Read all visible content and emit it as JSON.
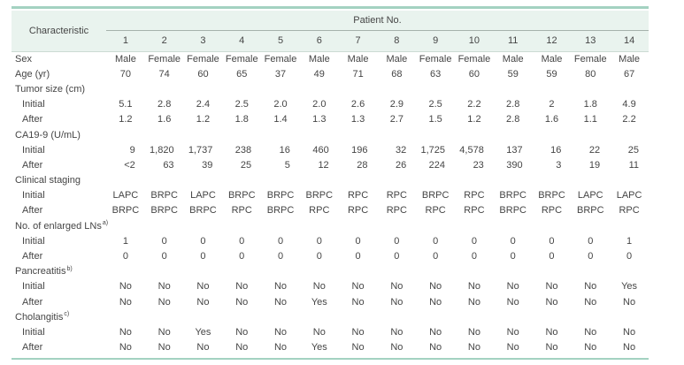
{
  "table": {
    "characteristic_label": "Characteristic",
    "patient_group_label": "Patient No.",
    "patient_numbers": [
      "1",
      "2",
      "3",
      "4",
      "5",
      "6",
      "7",
      "8",
      "9",
      "10",
      "11",
      "12",
      "13",
      "14"
    ],
    "rows": [
      {
        "label": "Sex",
        "type": "data",
        "indent": 0,
        "align": "center",
        "values": [
          "Male",
          "Female",
          "Female",
          "Female",
          "Female",
          "Male",
          "Male",
          "Male",
          "Female",
          "Female",
          "Male",
          "Male",
          "Female",
          "Male"
        ]
      },
      {
        "label": "Age (yr)",
        "type": "data",
        "indent": 0,
        "align": "center",
        "values": [
          "70",
          "74",
          "60",
          "65",
          "37",
          "49",
          "71",
          "68",
          "63",
          "60",
          "59",
          "59",
          "80",
          "67"
        ]
      },
      {
        "label": "Tumor size (cm)",
        "type": "section",
        "indent": 0,
        "values": []
      },
      {
        "label": "Initial",
        "type": "data",
        "indent": 1,
        "align": "center",
        "values": [
          "5.1",
          "2.8",
          "2.4",
          "2.5",
          "2.0",
          "2.0",
          "2.6",
          "2.9",
          "2.5",
          "2.2",
          "2.8",
          "2",
          "1.8",
          "4.9"
        ]
      },
      {
        "label": "After",
        "type": "data",
        "indent": 1,
        "align": "center",
        "values": [
          "1.2",
          "1.6",
          "1.2",
          "1.8",
          "1.4",
          "1.3",
          "1.3",
          "2.7",
          "1.5",
          "1.2",
          "2.8",
          "1.6",
          "1.1",
          "2.2"
        ]
      },
      {
        "label": "CA19-9 (U/mL)",
        "type": "section",
        "indent": 0,
        "values": []
      },
      {
        "label": "Initial",
        "type": "data",
        "indent": 1,
        "align": "right",
        "values": [
          "9",
          "1,820",
          "1,737",
          "238",
          "16",
          "460",
          "196",
          "32",
          "1,725",
          "4,578",
          "137",
          "16",
          "22",
          "25"
        ]
      },
      {
        "label": "After",
        "type": "data",
        "indent": 1,
        "align": "right",
        "values": [
          "<2",
          "63",
          "39",
          "25",
          "5",
          "12",
          "28",
          "26",
          "224",
          "23",
          "390",
          "3",
          "19",
          "11"
        ]
      },
      {
        "label": "Clinical staging",
        "type": "section",
        "indent": 0,
        "values": []
      },
      {
        "label": "Initial",
        "type": "data",
        "indent": 1,
        "align": "center",
        "values": [
          "LAPC",
          "BRPC",
          "LAPC",
          "BRPC",
          "BRPC",
          "BRPC",
          "RPC",
          "RPC",
          "BRPC",
          "RPC",
          "BRPC",
          "BRPC",
          "LAPC",
          "LAPC"
        ]
      },
      {
        "label": "After",
        "type": "data",
        "indent": 1,
        "align": "center",
        "values": [
          "BRPC",
          "BRPC",
          "BRPC",
          "RPC",
          "BRPC",
          "RPC",
          "RPC",
          "RPC",
          "RPC",
          "RPC",
          "BRPC",
          "RPC",
          "BRPC",
          "RPC"
        ]
      },
      {
        "label": "No. of enlarged LNs",
        "sup": "a)",
        "type": "section",
        "indent": 0,
        "values": []
      },
      {
        "label": "Initial",
        "type": "data",
        "indent": 1,
        "align": "center",
        "values": [
          "1",
          "0",
          "0",
          "0",
          "0",
          "0",
          "0",
          "0",
          "0",
          "0",
          "0",
          "0",
          "0",
          "1"
        ]
      },
      {
        "label": "After",
        "type": "data",
        "indent": 1,
        "align": "center",
        "values": [
          "0",
          "0",
          "0",
          "0",
          "0",
          "0",
          "0",
          "0",
          "0",
          "0",
          "0",
          "0",
          "0",
          "0"
        ]
      },
      {
        "label": "Pancreatitis",
        "sup": "b)",
        "type": "section",
        "indent": 0,
        "values": []
      },
      {
        "label": "Initial",
        "type": "data",
        "indent": 1,
        "align": "center",
        "values": [
          "No",
          "No",
          "No",
          "No",
          "No",
          "No",
          "No",
          "No",
          "No",
          "No",
          "No",
          "No",
          "No",
          "Yes"
        ]
      },
      {
        "label": "After",
        "type": "data",
        "indent": 1,
        "align": "center",
        "values": [
          "No",
          "No",
          "No",
          "No",
          "No",
          "Yes",
          "No",
          "No",
          "No",
          "No",
          "No",
          "No",
          "No",
          "No"
        ]
      },
      {
        "label": "Cholangitis",
        "sup": "c)",
        "type": "section",
        "indent": 0,
        "values": []
      },
      {
        "label": "Initial",
        "type": "data",
        "indent": 1,
        "align": "center",
        "values": [
          "No",
          "No",
          "Yes",
          "No",
          "No",
          "No",
          "No",
          "No",
          "No",
          "No",
          "No",
          "No",
          "No",
          "No"
        ]
      },
      {
        "label": "After",
        "type": "data",
        "indent": 1,
        "align": "center",
        "values": [
          "No",
          "No",
          "No",
          "No",
          "No",
          "Yes",
          "No",
          "No",
          "No",
          "No",
          "No",
          "No",
          "No",
          "No"
        ]
      }
    ],
    "colors": {
      "rule_green": "#a3d2c1",
      "header_bg": "#e9f3ee",
      "subrule_gray": "#a6b2ac",
      "text": "#454545"
    }
  }
}
